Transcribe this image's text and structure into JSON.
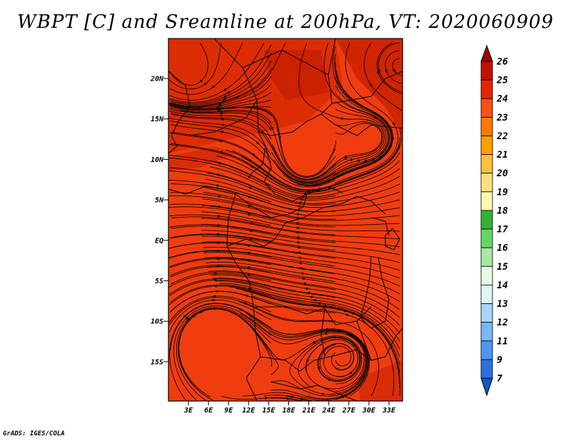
{
  "title": "WBPT [C] and Sreamline at 200hPa, VT: 2020060909",
  "credit": "GrADS: IGES/COLA",
  "map": {
    "background_color": "#ef3d10",
    "latitude_labels": [
      "20N",
      "15N",
      "10N",
      "5N",
      "EQ",
      "5S",
      "10S",
      "15S"
    ],
    "longitude_labels": [
      "3E",
      "6E",
      "9E",
      "12E",
      "15E",
      "18E",
      "21E",
      "24E",
      "27E",
      "30E",
      "33E"
    ]
  },
  "colorbar": {
    "labels": [
      "26",
      "25",
      "24",
      "23",
      "22",
      "21",
      "20",
      "19",
      "18",
      "17",
      "16",
      "15",
      "14",
      "13",
      "12",
      "11",
      "9",
      "7"
    ],
    "colors": [
      "#a20000",
      "#c31000",
      "#e22600",
      "#fa5014",
      "#fc7a00",
      "#fca000",
      "#f8c23a",
      "#f8e07e",
      "#fcf8b0",
      "#33b233",
      "#66d466",
      "#a8e8a0",
      "#e4fae4",
      "#e0f4fc",
      "#a8d4f8",
      "#78b8f4",
      "#4e96ec",
      "#2a72dc",
      "#1454c8"
    ]
  }
}
